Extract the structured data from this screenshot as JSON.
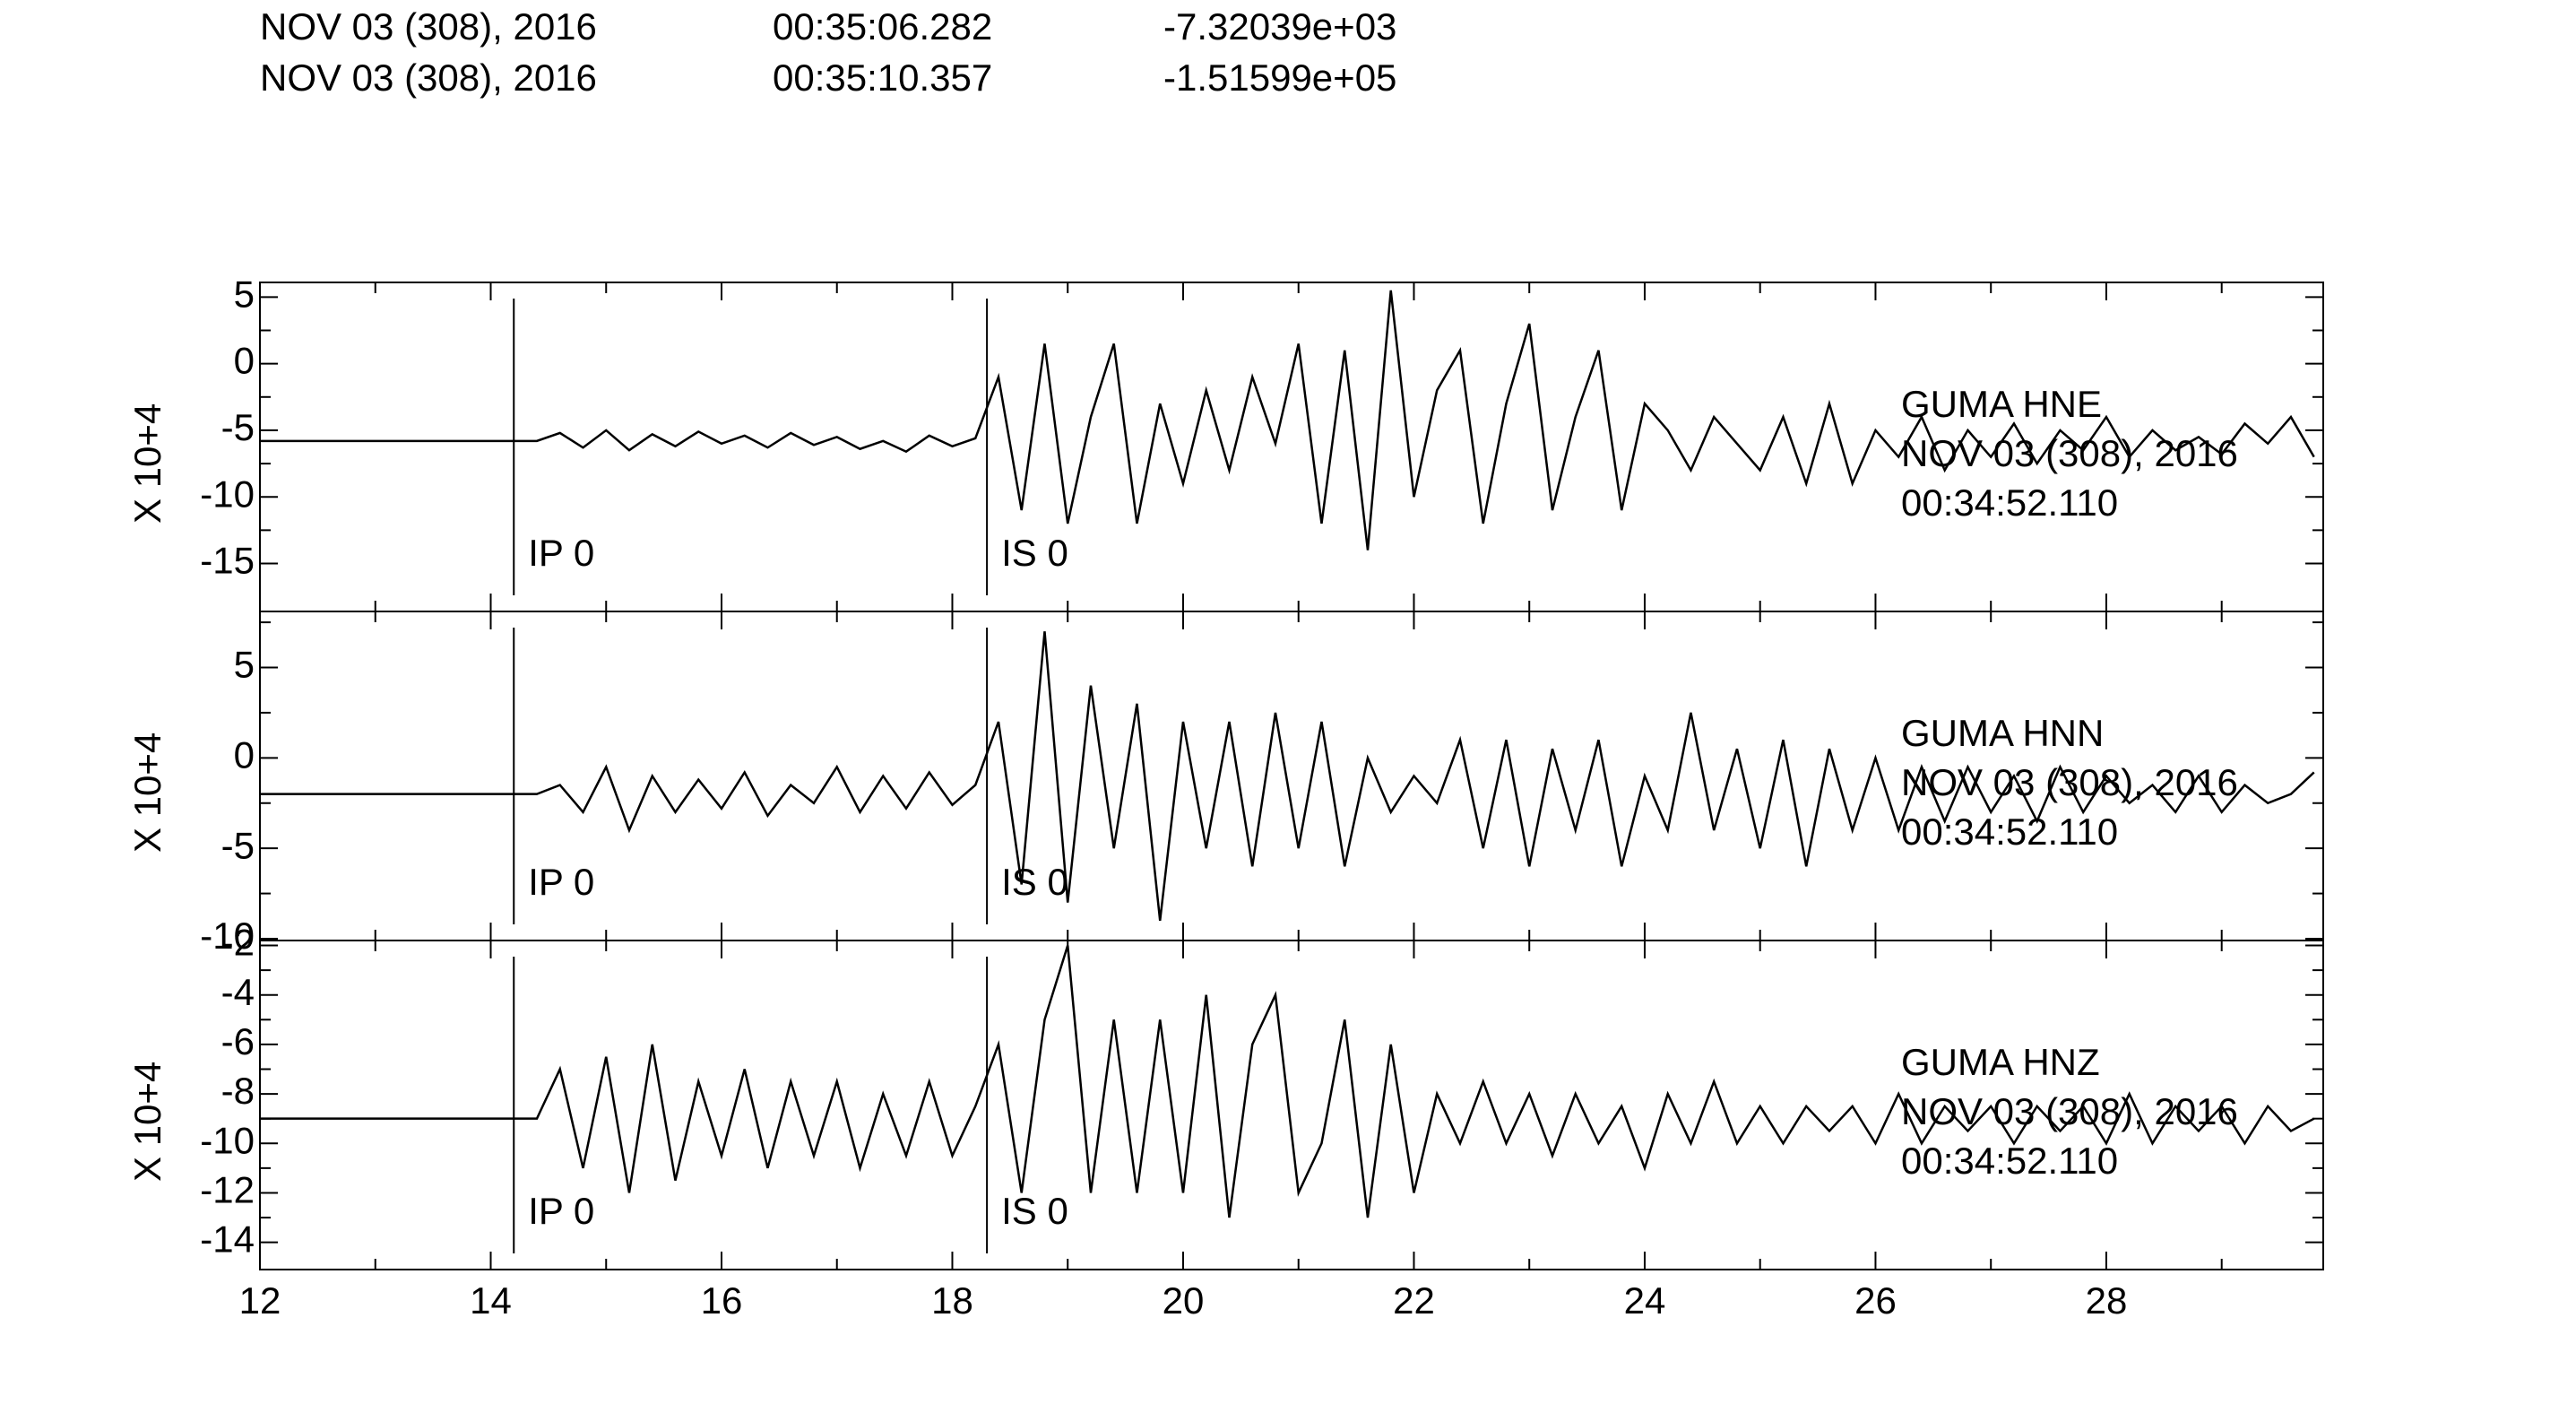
{
  "header": {
    "rows": [
      [
        "NOV 03 (308), 2016",
        "00:35:06.282",
        "-7.32039e+03"
      ],
      [
        "NOV 03 (308), 2016",
        "00:35:10.357",
        "-1.51599e+05"
      ]
    ]
  },
  "chart_data": [
    {
      "type": "line",
      "ylabel": "X 10+4",
      "station": "GUMA   HNE",
      "date": "NOV 03 (308), 2016",
      "time": "00:34:52.110",
      "markers": [
        {
          "x": 14.2,
          "label": "IP  0"
        },
        {
          "x": 18.3,
          "label": "IS  0"
        }
      ],
      "xlim": [
        12,
        29.88
      ],
      "ylim": [
        -18.6,
        6.1
      ],
      "yticks": [
        -15,
        -10,
        -5,
        0,
        5
      ],
      "color": "#000000",
      "x": [
        12.0,
        12.2,
        12.4,
        12.6,
        12.8,
        13.0,
        13.2,
        13.4,
        13.6,
        13.8,
        14.0,
        14.2,
        14.4,
        14.6,
        14.8,
        15.0,
        15.2,
        15.4,
        15.6,
        15.8,
        16.0,
        16.2,
        16.4,
        16.6,
        16.8,
        17.0,
        17.2,
        17.4,
        17.6,
        17.8,
        18.0,
        18.2,
        18.4,
        18.6,
        18.8,
        19.0,
        19.2,
        19.4,
        19.6,
        19.8,
        20.0,
        20.2,
        20.4,
        20.6,
        20.8,
        21.0,
        21.2,
        21.4,
        21.6,
        21.8,
        22.0,
        22.2,
        22.4,
        22.6,
        22.8,
        23.0,
        23.2,
        23.4,
        23.6,
        23.8,
        24.0,
        24.2,
        24.4,
        24.6,
        24.8,
        25.0,
        25.2,
        25.4,
        25.6,
        25.8,
        26.0,
        26.2,
        26.4,
        26.6,
        26.8,
        27.0,
        27.2,
        27.4,
        27.6,
        27.8,
        28.0,
        28.2,
        28.4,
        28.6,
        28.8,
        29.0,
        29.2,
        29.4,
        29.6,
        29.8
      ],
      "values": [
        -5.8,
        -5.8,
        -5.8,
        -5.8,
        -5.8,
        -5.8,
        -5.8,
        -5.8,
        -5.8,
        -5.8,
        -5.8,
        -5.8,
        -5.8,
        -5.2,
        -6.3,
        -5.0,
        -6.5,
        -5.3,
        -6.2,
        -5.1,
        -6.0,
        -5.4,
        -6.3,
        -5.2,
        -6.1,
        -5.5,
        -6.4,
        -5.8,
        -6.6,
        -5.4,
        -6.2,
        -5.6,
        -1,
        -11,
        1.5,
        -12,
        -4,
        1.5,
        -12,
        -3,
        -9,
        -2,
        -8,
        -1,
        -6,
        1.5,
        -12,
        1,
        -14,
        5.5,
        -10,
        -2,
        1,
        -12,
        -3,
        3,
        -11,
        -4,
        1,
        -11,
        -3,
        -5,
        -8,
        -4,
        -6,
        -8,
        -4,
        -9,
        -3,
        -9,
        -5,
        -7,
        -4,
        -8,
        -5,
        -7,
        -4.5,
        -7.5,
        -5,
        -6.5,
        -4,
        -7,
        -5,
        -6.5,
        -5.5,
        -6.8,
        -4.5,
        -6,
        -4,
        -7
      ]
    },
    {
      "type": "line",
      "ylabel": "X 10+4",
      "station": "GUMA   HNN",
      "date": "NOV 03 (308), 2016",
      "time": "00:34:52.110",
      "markers": [
        {
          "x": 14.2,
          "label": "IP  0"
        },
        {
          "x": 18.3,
          "label": "IS  0"
        }
      ],
      "xlim": [
        12,
        29.88
      ],
      "ylim": [
        -10.1,
        8.1
      ],
      "yticks": [
        -10,
        -5,
        0,
        5
      ],
      "color": "#000000",
      "x": [
        12.0,
        12.2,
        12.4,
        12.6,
        12.8,
        13.0,
        13.2,
        13.4,
        13.6,
        13.8,
        14.0,
        14.2,
        14.4,
        14.6,
        14.8,
        15.0,
        15.2,
        15.4,
        15.6,
        15.8,
        16.0,
        16.2,
        16.4,
        16.6,
        16.8,
        17.0,
        17.2,
        17.4,
        17.6,
        17.8,
        18.0,
        18.2,
        18.4,
        18.6,
        18.8,
        19.0,
        19.2,
        19.4,
        19.6,
        19.8,
        20.0,
        20.2,
        20.4,
        20.6,
        20.8,
        21.0,
        21.2,
        21.4,
        21.6,
        21.8,
        22.0,
        22.2,
        22.4,
        22.6,
        22.8,
        23.0,
        23.2,
        23.4,
        23.6,
        23.8,
        24.0,
        24.2,
        24.4,
        24.6,
        24.8,
        25.0,
        25.2,
        25.4,
        25.6,
        25.8,
        26.0,
        26.2,
        26.4,
        26.6,
        26.8,
        27.0,
        27.2,
        27.4,
        27.6,
        27.8,
        28.0,
        28.2,
        28.4,
        28.6,
        28.8,
        29.0,
        29.2,
        29.4,
        29.6,
        29.8
      ],
      "values": [
        -2,
        -2,
        -2,
        -2,
        -2,
        -2,
        -2,
        -2,
        -2,
        -2,
        -2,
        -2,
        -2,
        -1.5,
        -3,
        -0.5,
        -4,
        -1,
        -3,
        -1.2,
        -2.8,
        -0.8,
        -3.2,
        -1.5,
        -2.5,
        -0.5,
        -3,
        -1,
        -2.8,
        -0.8,
        -2.6,
        -1.5,
        2,
        -7,
        7,
        -8,
        4,
        -5,
        3,
        -9,
        2,
        -5,
        2,
        -6,
        2.5,
        -5,
        2,
        -6,
        0,
        -3,
        -1,
        -2.5,
        1,
        -5,
        1,
        -6,
        0.5,
        -4,
        1,
        -6,
        -1,
        -4,
        2.5,
        -4,
        0.5,
        -5,
        1,
        -6,
        0.5,
        -4,
        0,
        -4,
        -0.5,
        -3.5,
        -0.5,
        -3,
        -1,
        -3.5,
        -0.5,
        -3,
        -1,
        -2.5,
        -1.5,
        -3,
        -1,
        -3,
        -1.5,
        -2.5,
        -2,
        -0.8
      ]
    },
    {
      "type": "line",
      "ylabel": "X 10+4",
      "station": "GUMA   HNZ",
      "date": "NOV 03 (308), 2016",
      "time": "00:34:52.110",
      "markers": [
        {
          "x": 14.2,
          "label": "IP  0"
        },
        {
          "x": 18.3,
          "label": "IS  0"
        }
      ],
      "xlim": [
        12,
        29.88
      ],
      "ylim": [
        -15.1,
        -1.8
      ],
      "yticks": [
        -14,
        -12,
        -10,
        -8,
        -6,
        -4,
        -2
      ],
      "xticks": [
        12,
        14,
        16,
        18,
        20,
        22,
        24,
        26,
        28
      ],
      "color": "#000000",
      "x": [
        12.0,
        12.2,
        12.4,
        12.6,
        12.8,
        13.0,
        13.2,
        13.4,
        13.6,
        13.8,
        14.0,
        14.2,
        14.4,
        14.6,
        14.8,
        15.0,
        15.2,
        15.4,
        15.6,
        15.8,
        16.0,
        16.2,
        16.4,
        16.6,
        16.8,
        17.0,
        17.2,
        17.4,
        17.6,
        17.8,
        18.0,
        18.2,
        18.4,
        18.6,
        18.8,
        19.0,
        19.2,
        19.4,
        19.6,
        19.8,
        20.0,
        20.2,
        20.4,
        20.6,
        20.8,
        21.0,
        21.2,
        21.4,
        21.6,
        21.8,
        22.0,
        22.2,
        22.4,
        22.6,
        22.8,
        23.0,
        23.2,
        23.4,
        23.6,
        23.8,
        24.0,
        24.2,
        24.4,
        24.6,
        24.8,
        25.0,
        25.2,
        25.4,
        25.6,
        25.8,
        26.0,
        26.2,
        26.4,
        26.6,
        26.8,
        27.0,
        27.2,
        27.4,
        27.6,
        27.8,
        28.0,
        28.2,
        28.4,
        28.6,
        28.8,
        29.0,
        29.2,
        29.4,
        29.6,
        29.8
      ],
      "values": [
        -9,
        -9,
        -9,
        -9,
        -9,
        -9,
        -9,
        -9,
        -9,
        -9,
        -9,
        -9,
        -9,
        -7,
        -11,
        -6.5,
        -12,
        -6,
        -11.5,
        -7.5,
        -10.5,
        -7,
        -11,
        -7.5,
        -10.5,
        -7.5,
        -11,
        -8,
        -10.5,
        -7.5,
        -10.5,
        -8.5,
        -6,
        -12,
        -5,
        -2,
        -12,
        -5,
        -12,
        -5,
        -12,
        -4,
        -13,
        -6,
        -4,
        -12,
        -10,
        -5,
        -13,
        -6,
        -12,
        -8,
        -10,
        -7.5,
        -10,
        -8,
        -10.5,
        -8,
        -10,
        -8.5,
        -11,
        -8,
        -10,
        -7.5,
        -10,
        -8.5,
        -10,
        -8.5,
        -9.5,
        -8.5,
        -10,
        -8,
        -10,
        -8.5,
        -9.5,
        -8.5,
        -10,
        -8.5,
        -9.5,
        -8.5,
        -10,
        -8,
        -10,
        -8.5,
        -9.5,
        -8.5,
        -10,
        -8.5,
        -9.5,
        -9
      ]
    }
  ]
}
